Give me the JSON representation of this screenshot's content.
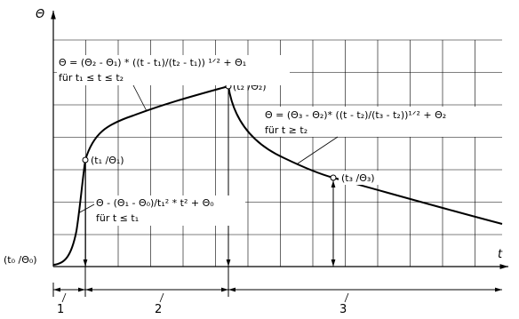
{
  "axes": {
    "y_label": "Θ",
    "x_label": "t"
  },
  "points": {
    "p0": "(t₀ /Θ₀)",
    "p1": "(t₁ /Θ₁)",
    "p2": "(t₂ /Θ₂)",
    "p3": "(t₃ /Θ₃)"
  },
  "formulas": {
    "phase2": {
      "equation": "Θ = (Θ₂ - Θ₁) * ((t - t₁)/(t₂ - t₁)) ¹ᐟ² + Θ₁",
      "condition": "für t₁ ≤ t ≤ t₂"
    },
    "phase3": {
      "equation": "Θ = (Θ₃ - Θ₂)* ((t - t₂)/(t₃ - t₂))¹ᐟ² + Θ₂",
      "condition": "für t ≥ t₂"
    },
    "phase1": {
      "equation": "Θ - (Θ₁ - Θ₀)/t₁² * t² + Θ₀",
      "condition": "für t ≤ t₁"
    }
  },
  "phases": [
    "1",
    "2",
    "3"
  ]
}
